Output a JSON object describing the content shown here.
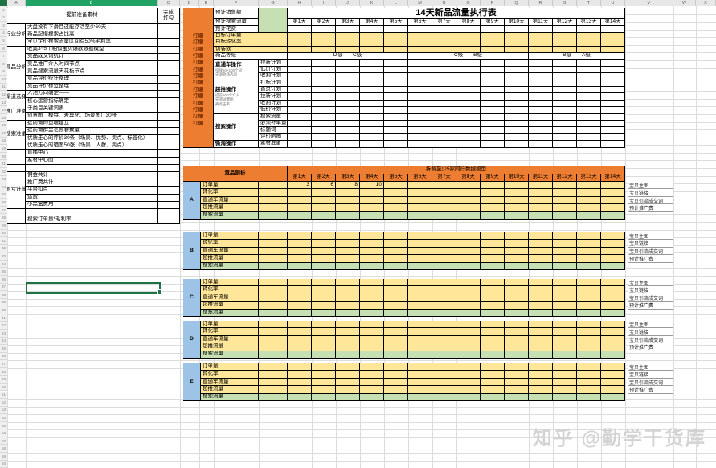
{
  "app": {
    "watermark": "知乎 @勤学干货库"
  },
  "colors": {
    "orange": "#ED7D31",
    "yellow": "#FFE699",
    "green": "#C6E0B4",
    "blue": "#9DC3E6",
    "select_green": "#1F7244",
    "header_green": "#21A366",
    "watermark_gray": "#D3D3D3"
  },
  "spreadsheet": {
    "column_headers": [
      "A",
      "B",
      "C",
      "D",
      "E",
      "F",
      "G",
      "H",
      "I",
      "J",
      "K",
      "L",
      "M",
      "N",
      "O",
      "P",
      "Q",
      "R",
      "S",
      "T",
      "U",
      "V",
      "W",
      "X"
    ],
    "row_count": 60,
    "selected_column": "B",
    "selected_cell": "B39"
  },
  "prep_table": {
    "title": "提前准备素材",
    "done_label_line1": "完成",
    "done_label_line2": "打勾",
    "sections": [
      {
        "label": "行业分析",
        "items": [
          "大盘没有下滑且还能存活至少60天",
          "新品起爆搜索占比高",
          "宝贝定价搜索流量区间有50%毛利率"
        ]
      },
      {
        "label": "竞品分析",
        "items": [
          "收集3~5个相似宝贝爆款数据模型",
          "竞品成交词统计",
          "竞品推广介入时间节点",
          "竞品搜索流量天花板节点",
          "竞品评价统计整理",
          "竞品评价标签整理"
        ]
      },
      {
        "label": "渠道选择",
        "items": [
          "入池方向确定——",
          "核心运营指标确定——"
        ]
      },
      {
        "label": "推广准备",
        "items": [
          "子类目关键词表",
          "创意图（模特、差异化、场景图）30张"
        ]
      },
      {
        "label": "搜索准备",
        "items": [
          "提前做的鱼塘建立",
          "提前做群里老顾客数量",
          "优质走心的评价30条（场景、优势、卖点、标签化）",
          "优质走心的晒图50张（场景、人群、卖点）"
        ]
      },
      {
        "label": "",
        "items": [
          "直播中心",
          "素材中心图"
        ]
      }
    ],
    "profit_section": {
      "label": "盈亏计算",
      "items": [
        "佣金共计",
        "推广费共计",
        "平台扣点",
        "运费",
        "小黑盒费用"
      ],
      "extra_rows": [
        "",
        "搜索订单量*毛利率"
      ]
    }
  },
  "exec_table": {
    "title": "14天新品流量执行表",
    "days": [
      "第1天",
      "第2天",
      "第3天",
      "第4天",
      "第5天",
      "第6天",
      "第7天",
      "第8天",
      "第9天",
      "第10天",
      "第11天",
      "第12天",
      "第13天",
      "第14天"
    ],
    "estimate_rows": [
      "预计销售额",
      "预计搜索流量",
      "预计花费"
    ],
    "target_rows": [
      "目标订单量",
      "目标转化率",
      "访客数"
    ],
    "blast_label": "打爆",
    "grade_row": {
      "label": "新品等级",
      "phases": [
        {
          "text": "D级——C级",
          "from": 1,
          "to": 5
        },
        {
          "text": "C级——B级",
          "from": 6,
          "to": 10
        },
        {
          "text": "B级——A级",
          "from": 11,
          "to": 14
        }
      ]
    },
    "operations": [
      {
        "name": "直通车操作",
        "notes": [
          "投放50~100个词",
          "先测款筛选词"
        ],
        "plans": [
          "拉新计划",
          "低价计划",
          "收割计划"
        ]
      },
      {
        "name": "超推操作",
        "notes": [
          "提前500个介入",
          "先测试爆图",
          "养点击率"
        ],
        "plans": [
          "打标计划",
          "首页计划",
          "拉新计划",
          "收割计划",
          "低价计划"
        ]
      },
      {
        "name": "搜索操作",
        "notes": [],
        "plans": [
          "搜索流量",
          "必须补单量",
          "标题词",
          "评价晒图"
        ]
      },
      {
        "name": "微淘操作",
        "notes": [],
        "plans": [
          "素材准备"
        ]
      }
    ]
  },
  "competitor_table": {
    "title": "竞品剖析",
    "banner": "拆解至少5家同行数据模型",
    "metric_rows": [
      "订单量",
      "转化率",
      "直通车流量",
      "超推流量",
      "搜索流量"
    ],
    "blocks": [
      {
        "label": "A",
        "orders": [
          3,
          6,
          8,
          10
        ]
      },
      {
        "label": "B",
        "orders": []
      },
      {
        "label": "C",
        "orders": []
      },
      {
        "label": "D",
        "orders": []
      },
      {
        "label": "E",
        "orders": []
      }
    ],
    "side_notes": [
      "宝贝主图",
      "宝贝链接",
      "宝贝引流成交词",
      "预计推广费"
    ]
  }
}
